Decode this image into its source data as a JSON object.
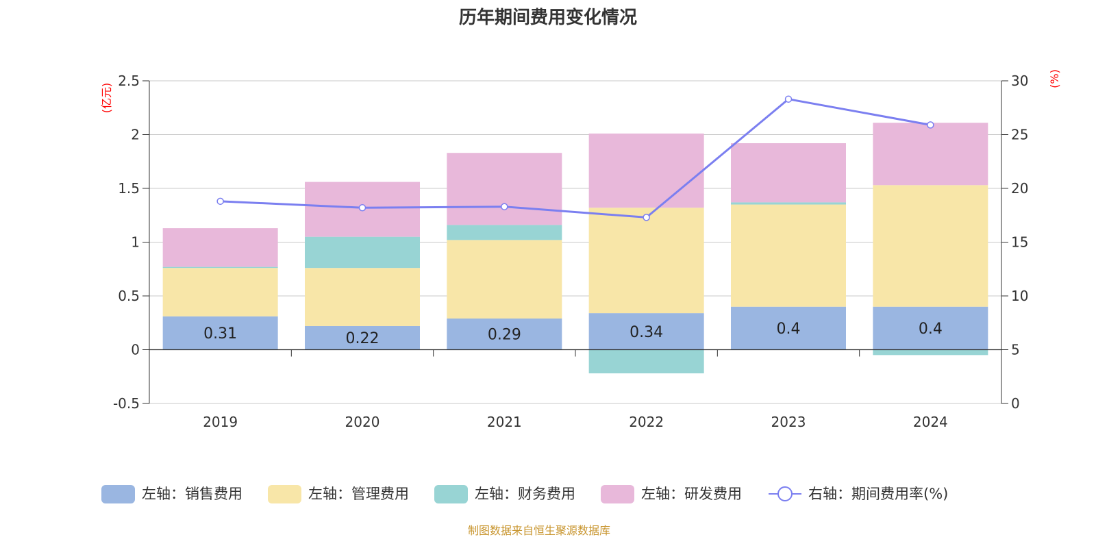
{
  "chart_data": {
    "type": "bar",
    "title": "历年期间费用变化情况",
    "left_unit": "(亿元)",
    "right_unit": "(%)",
    "categories": [
      "2019",
      "2020",
      "2021",
      "2022",
      "2023",
      "2024"
    ],
    "series": [
      {
        "name": "左轴：销售费用",
        "type": "bar",
        "axis": "left",
        "color": "#9ab6e1",
        "values": [
          0.31,
          0.22,
          0.29,
          0.34,
          0.4,
          0.4
        ],
        "show_labels": true
      },
      {
        "name": "左轴：管理费用",
        "type": "bar",
        "axis": "left",
        "color": "#f8e6a8",
        "values": [
          0.45,
          0.54,
          0.73,
          0.98,
          0.95,
          1.13
        ],
        "show_labels": false
      },
      {
        "name": "左轴：财务费用",
        "type": "bar",
        "axis": "left",
        "color": "#98d4d4",
        "values": [
          0.01,
          0.29,
          0.14,
          -0.22,
          0.02,
          -0.05
        ],
        "show_labels": false
      },
      {
        "name": "左轴：研发费用",
        "type": "bar",
        "axis": "left",
        "color": "#e8b8da",
        "values": [
          0.36,
          0.51,
          0.67,
          0.69,
          0.55,
          0.58
        ],
        "show_labels": false
      },
      {
        "name": "右轴：期间费用率(%)",
        "type": "line",
        "axis": "right",
        "color": "#7b7ff0",
        "values": [
          18.8,
          18.2,
          18.3,
          17.3,
          28.3,
          25.9
        ]
      }
    ],
    "y_left": {
      "min": -0.5,
      "max": 2.5,
      "ticks": [
        "2.5",
        "2",
        "1.5",
        "1",
        "0.5",
        "0",
        "-0.5"
      ]
    },
    "y_right": {
      "min": 0,
      "max": 30,
      "ticks": [
        "30",
        "25",
        "20",
        "15",
        "10",
        "5",
        "0"
      ]
    },
    "grid": true,
    "legend_position": "bottom"
  },
  "source_note": "制图数据来自恒生聚源数据库"
}
